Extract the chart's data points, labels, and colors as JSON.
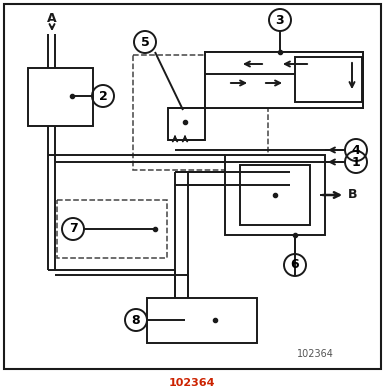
{
  "figsize": [
    3.85,
    3.91
  ],
  "dpi": 100,
  "lc": "#1a1a1a",
  "lw": 1.4,
  "fs": 9,
  "ref1": "102364",
  "ref2": "102364"
}
